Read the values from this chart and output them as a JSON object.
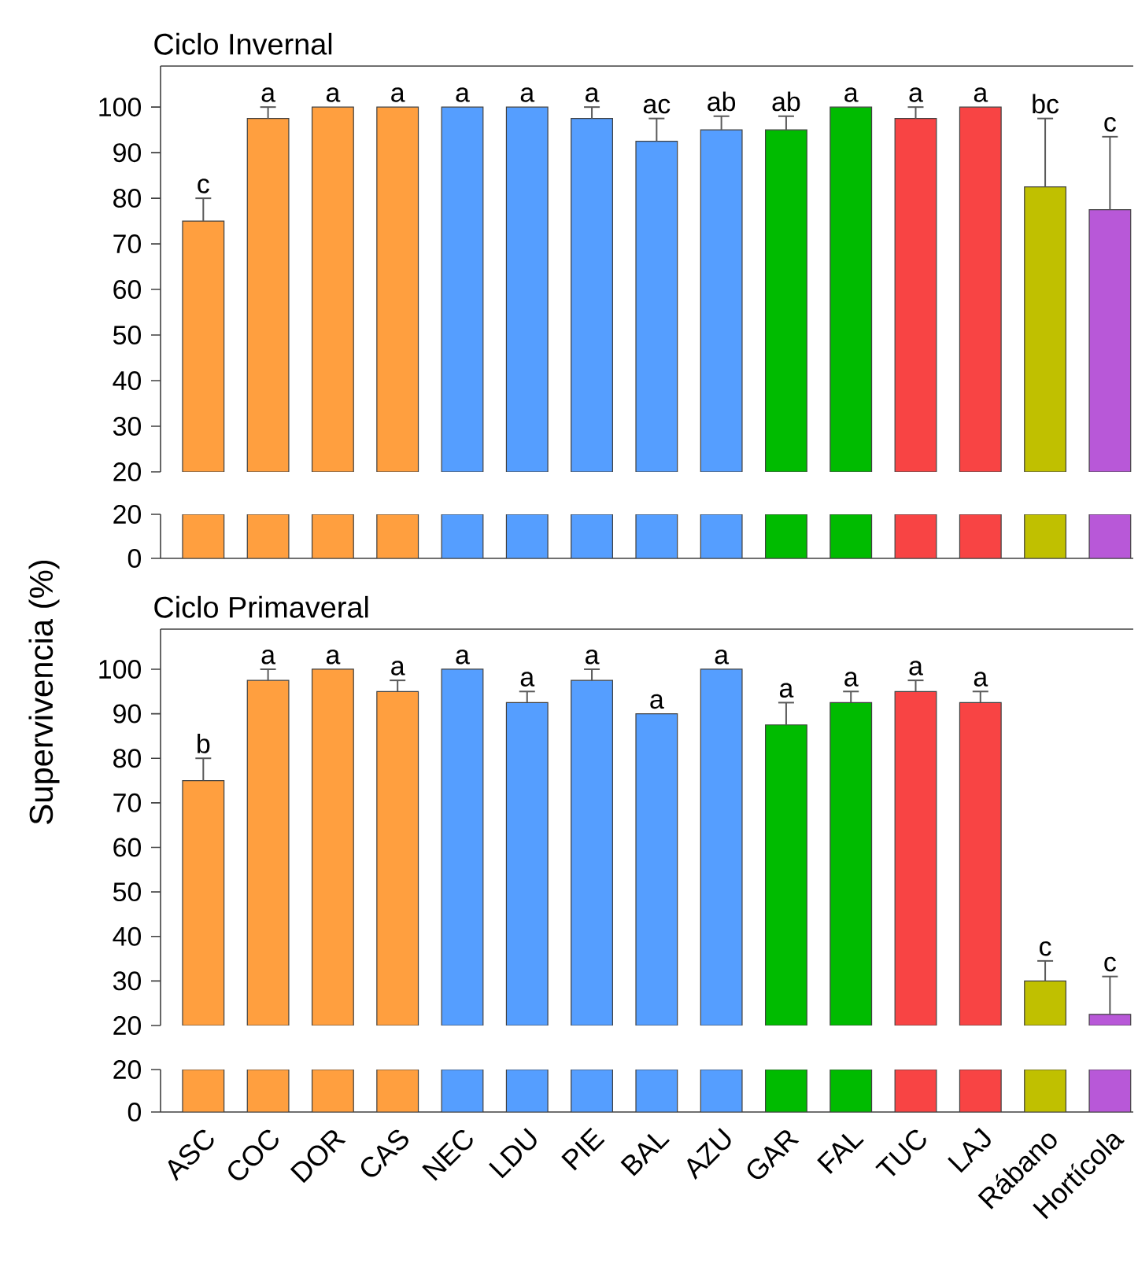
{
  "chart_data": [
    {
      "type": "bar",
      "title": "Ciclo Invernal",
      "ylabel": "Supervivencia (%)",
      "categories": [
        null,
        null,
        null,
        null,
        null,
        null,
        null,
        null,
        null,
        null,
        null,
        null,
        null,
        null,
        null
      ],
      "values": [
        75,
        97.5,
        100,
        100,
        100,
        100,
        97.5,
        92.5,
        95,
        95,
        100,
        97.5,
        100,
        82.5,
        77.5
      ],
      "errors": [
        5,
        2.5,
        null,
        null,
        null,
        null,
        2.5,
        5,
        3,
        3,
        null,
        2.5,
        null,
        15,
        16
      ],
      "value_labels": [
        "c",
        "a",
        "a",
        "a",
        "a",
        "a",
        "a",
        "ac",
        "ab",
        "ab",
        "a",
        "a",
        "a",
        "bc",
        "c"
      ],
      "colors": [
        "#ff9f3f",
        "#ff9f3f",
        "#ff9f3f",
        "#ff9f3f",
        "#559eff",
        "#559eff",
        "#559eff",
        "#559eff",
        "#559eff",
        "#00bb00",
        "#00bb00",
        "#f84444",
        "#f84444",
        "#c0c000",
        "#b858d8"
      ],
      "ylim": [
        20,
        109
      ],
      "yticks": [
        20,
        30,
        40,
        50,
        60,
        70,
        80,
        90,
        100
      ],
      "tick_labels": "y"
    },
    {
      "type": "bar",
      "categories": [
        null,
        null,
        null,
        null,
        null,
        null,
        null,
        null,
        null,
        null,
        null,
        null,
        null,
        null,
        null
      ],
      "values": [
        20,
        20,
        20,
        20,
        20,
        20,
        20,
        20,
        20,
        20,
        20,
        20,
        20,
        20,
        20
      ],
      "colors": [
        "#ff9f3f",
        "#ff9f3f",
        "#ff9f3f",
        "#ff9f3f",
        "#559eff",
        "#559eff",
        "#559eff",
        "#559eff",
        "#559eff",
        "#00bb00",
        "#00bb00",
        "#f84444",
        "#f84444",
        "#c0c000",
        "#b858d8"
      ],
      "ylim": [
        0,
        20
      ],
      "yticks": [
        0,
        20
      ],
      "tick_labels": "y"
    },
    {
      "type": "bar",
      "title": "Ciclo Primaveral",
      "categories": [
        null,
        null,
        null,
        null,
        null,
        null,
        null,
        null,
        null,
        null,
        null,
        null,
        null,
        null,
        null
      ],
      "values": [
        75,
        97.5,
        100,
        95,
        100,
        92.5,
        97.5,
        90,
        100,
        87.5,
        92.5,
        95,
        92.5,
        30,
        22.5
      ],
      "errors": [
        5,
        2.5,
        null,
        2.5,
        null,
        2.5,
        2.5,
        null,
        null,
        5,
        2.5,
        2.5,
        2.5,
        4.5,
        8.5
      ],
      "value_labels": [
        "b",
        "a",
        "a",
        "a",
        "a",
        "a",
        "a",
        "a",
        "a",
        "a",
        "a",
        "a",
        "a",
        "c",
        "c"
      ],
      "colors": [
        "#ff9f3f",
        "#ff9f3f",
        "#ff9f3f",
        "#ff9f3f",
        "#559eff",
        "#559eff",
        "#559eff",
        "#559eff",
        "#559eff",
        "#00bb00",
        "#00bb00",
        "#f84444",
        "#f84444",
        "#c0c000",
        "#b858d8"
      ],
      "ylim": [
        20,
        109
      ],
      "yticks": [
        20,
        30,
        40,
        50,
        60,
        70,
        80,
        90,
        100
      ],
      "tick_labels": "y"
    },
    {
      "type": "bar",
      "categories": [
        "ASC",
        "COC",
        "DOR",
        "CAS",
        "NEC",
        "LDU",
        "PIE",
        "BAL",
        "AZU",
        "GAR",
        "FAL",
        "TUC",
        "LAJ",
        "Rábano",
        "Hortícola"
      ],
      "values": [
        20,
        20,
        20,
        20,
        20,
        20,
        20,
        20,
        20,
        20,
        20,
        20,
        20,
        20,
        20
      ],
      "colors": [
        "#ff9f3f",
        "#ff9f3f",
        "#ff9f3f",
        "#ff9f3f",
        "#559eff",
        "#559eff",
        "#559eff",
        "#559eff",
        "#559eff",
        "#00bb00",
        "#00bb00",
        "#f84444",
        "#f84444",
        "#c0c000",
        "#b858d8"
      ],
      "ylim": [
        0,
        20
      ],
      "yticks": [
        0,
        20
      ]
    }
  ]
}
